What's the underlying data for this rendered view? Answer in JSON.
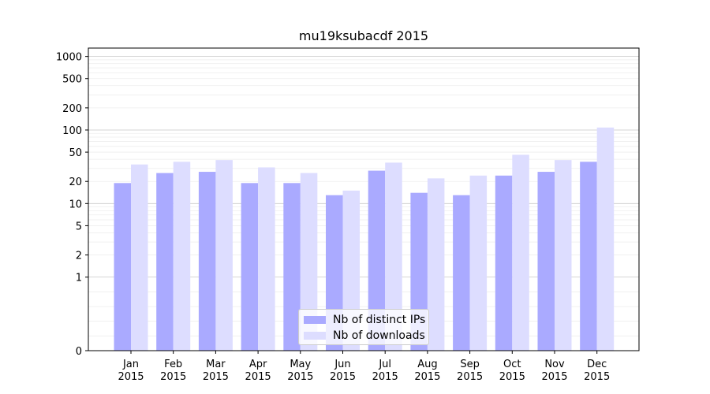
{
  "colors": {
    "series_ips": "#aaaaff",
    "series_downloads": "#ddddff",
    "grid_major": "#c8c8c8",
    "grid_minor": "#eeeeee"
  },
  "chart_data": {
    "type": "bar",
    "title": "mu19ksubacdf 2015",
    "xlabel": "",
    "ylabel": "",
    "yscale": "symlog",
    "ylim": [
      0,
      1300
    ],
    "ytick_labels": [
      "0",
      "1",
      "2",
      "5",
      "10",
      "20",
      "50",
      "100",
      "200",
      "500",
      "1000"
    ],
    "categories": [
      "Jan\n2015",
      "Feb\n2015",
      "Mar\n2015",
      "Apr\n2015",
      "May\n2015",
      "Jun\n2015",
      "Jul\n2015",
      "Aug\n2015",
      "Sep\n2015",
      "Oct\n2015",
      "Nov\n2015",
      "Dec\n2015"
    ],
    "series": [
      {
        "name": "Nb of distinct IPs",
        "values": [
          19,
          26,
          27,
          19,
          19,
          13,
          28,
          14,
          13,
          24,
          27,
          37
        ]
      },
      {
        "name": "Nb of downloads",
        "values": [
          34,
          37,
          39,
          31,
          26,
          15,
          36,
          22,
          24,
          46,
          39,
          108
        ]
      }
    ],
    "grid": true,
    "legend_position": "lower center"
  }
}
